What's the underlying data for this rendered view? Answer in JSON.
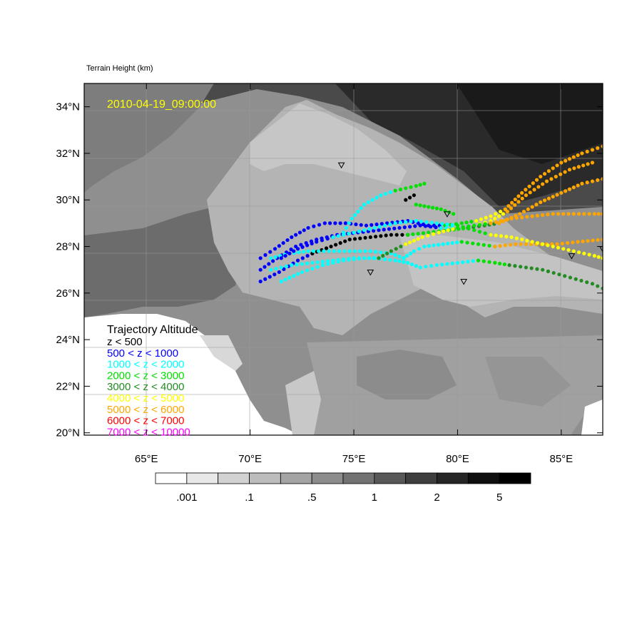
{
  "map_title": "Terrain Height   (km)",
  "timestamp": "2010-04-19_09:00:00",
  "timestamp_color": "#ffff00",
  "extent": {
    "lon": [
      62,
      87
    ],
    "lat": [
      19.9,
      35.0
    ]
  },
  "lat_ticks": [
    {
      "value": 20,
      "label": "20°N"
    },
    {
      "value": 22,
      "label": "22°N"
    },
    {
      "value": 24,
      "label": "24°N"
    },
    {
      "value": 26,
      "label": "26°N"
    },
    {
      "value": 28,
      "label": "28°N"
    },
    {
      "value": 30,
      "label": "30°N"
    },
    {
      "value": 32,
      "label": "32°N"
    },
    {
      "value": 34,
      "label": "34°N"
    }
  ],
  "lon_ticks": [
    {
      "value": 65,
      "label": "65°E"
    },
    {
      "value": 70,
      "label": "70°E"
    },
    {
      "value": 75,
      "label": "75°E"
    },
    {
      "value": 80,
      "label": "80°E"
    },
    {
      "value": 85,
      "label": "85°E"
    }
  ],
  "legend": {
    "title": "Trajectory Altitude",
    "entries": [
      {
        "label": "z < 500",
        "color": "#000000"
      },
      {
        "label": "500 < z < 1000",
        "color": "#0000ff"
      },
      {
        "label": "1000 < z < 2000",
        "color": "#00ffff"
      },
      {
        "label": "2000 < z < 3000",
        "color": "#00e000"
      },
      {
        "label": "3000 < z < 4000",
        "color": "#228b22"
      },
      {
        "label": "4000 < z < 5000",
        "color": "#ffff00"
      },
      {
        "label": "5000 < z < 6000",
        "color": "#ffa500"
      },
      {
        "label": "6000 < z < 7000",
        "color": "#ff0000"
      },
      {
        "label": "7000 < z < 10000",
        "color": "#ff00ff"
      }
    ]
  },
  "colorbar": {
    "colors": [
      "#ffffff",
      "#e8e8e8",
      "#d2d2d2",
      "#bcbcbc",
      "#a4a4a4",
      "#8c8c8c",
      "#727272",
      "#585858",
      "#3e3e3e",
      "#262626",
      "#0e0e0e",
      "#000000"
    ],
    "labels": [
      ".001",
      ".1",
      ".5",
      "1",
      "2",
      "5"
    ]
  },
  "stations": [
    {
      "lon": 74.4,
      "lat": 31.5
    },
    {
      "lon": 79.5,
      "lat": 29.4
    },
    {
      "lon": 75.8,
      "lat": 26.9
    },
    {
      "lon": 80.3,
      "lat": 26.5
    },
    {
      "lon": 85.5,
      "lat": 27.6
    },
    {
      "lon": 87.0,
      "lat": 27.9
    }
  ],
  "trajectories": [
    {
      "segments": [
        {
          "color": "#0000ff",
          "points": [
            [
              70.5,
              27.5
            ],
            [
              71.2,
              27.9
            ],
            [
              72.0,
              28.4
            ],
            [
              72.8,
              28.8
            ],
            [
              73.6,
              29.0
            ],
            [
              74.6,
              29.0
            ],
            [
              75.6,
              28.9
            ],
            [
              76.6,
              29.0
            ],
            [
              77.6,
              29.1
            ],
            [
              78.6,
              28.9
            ],
            [
              79.4,
              28.9
            ]
          ]
        },
        {
          "color": "#00e000",
          "points": [
            [
              79.4,
              28.9
            ],
            [
              80.2,
              29.0
            ],
            [
              80.9,
              29.1
            ]
          ]
        },
        {
          "color": "#ffff00",
          "points": [
            [
              80.9,
              29.1
            ],
            [
              81.6,
              29.3
            ],
            [
              82.3,
              29.6
            ]
          ]
        },
        {
          "color": "#ffa500",
          "points": [
            [
              82.3,
              29.6
            ],
            [
              83.1,
              30.3
            ],
            [
              84.0,
              31.0
            ],
            [
              85.0,
              31.6
            ],
            [
              86.0,
              32.0
            ],
            [
              87.0,
              32.3
            ]
          ]
        }
      ]
    },
    {
      "segments": [
        {
          "color": "#0000ff",
          "points": [
            [
              70.5,
              27.0
            ],
            [
              71.3,
              27.5
            ],
            [
              72.2,
              28.0
            ],
            [
              73.2,
              28.3
            ],
            [
              74.2,
              28.5
            ],
            [
              75.2,
              28.6
            ],
            [
              76.2,
              28.7
            ],
            [
              77.2,
              28.8
            ],
            [
              78.2,
              28.9
            ],
            [
              79.2,
              28.8
            ]
          ]
        },
        {
          "color": "#00ffff",
          "points": [
            [
              79.2,
              28.8
            ],
            [
              80.0,
              28.8
            ],
            [
              80.8,
              28.9
            ]
          ]
        },
        {
          "color": "#ffff00",
          "points": [
            [
              80.8,
              28.9
            ],
            [
              81.6,
              29.1
            ],
            [
              82.4,
              29.5
            ]
          ]
        },
        {
          "color": "#ffa500",
          "points": [
            [
              82.4,
              29.5
            ],
            [
              83.3,
              30.2
            ],
            [
              84.3,
              30.8
            ],
            [
              85.4,
              31.3
            ],
            [
              86.5,
              31.6
            ]
          ]
        }
      ]
    },
    {
      "segments": [
        {
          "color": "#0000ff",
          "points": [
            [
              70.5,
              26.5
            ],
            [
              71.4,
              26.9
            ],
            [
              72.3,
              27.4
            ],
            [
              73.0,
              27.7
            ]
          ]
        },
        {
          "color": "#000000",
          "points": [
            [
              73.0,
              27.7
            ],
            [
              73.9,
              28.0
            ],
            [
              74.8,
              28.3
            ],
            [
              75.8,
              28.4
            ],
            [
              76.8,
              28.5
            ],
            [
              77.6,
              28.5
            ]
          ]
        },
        {
          "color": "#00e000",
          "points": [
            [
              77.6,
              28.5
            ],
            [
              78.6,
              28.6
            ],
            [
              79.6,
              28.7
            ],
            [
              80.5,
              28.8
            ]
          ]
        },
        {
          "color": "#228b22",
          "points": [
            [
              80.5,
              28.8
            ],
            [
              81.3,
              28.9
            ],
            [
              82.0,
              29.0
            ]
          ]
        },
        {
          "color": "#ffa500",
          "points": [
            [
              82.0,
              29.0
            ],
            [
              83.0,
              29.4
            ],
            [
              84.0,
              29.9
            ],
            [
              85.0,
              30.3
            ],
            [
              86.0,
              30.7
            ],
            [
              87.0,
              30.9
            ]
          ]
        }
      ]
    },
    {
      "segments": [
        {
          "color": "#00ffff",
          "points": [
            [
              71.0,
              27.5
            ],
            [
              71.9,
              27.7
            ],
            [
              72.8,
              27.8
            ],
            [
              73.8,
              27.8
            ],
            [
              74.8,
              27.8
            ],
            [
              75.8,
              27.8
            ],
            [
              76.8,
              27.7
            ],
            [
              77.4,
              27.5
            ]
          ]
        },
        {
          "color": "#00ffff",
          "points": [
            [
              77.4,
              27.5
            ],
            [
              77.9,
              27.8
            ],
            [
              78.4,
              28.0
            ],
            [
              79.3,
              28.1
            ],
            [
              80.2,
              28.2
            ]
          ]
        },
        {
          "color": "#00e000",
          "points": [
            [
              80.2,
              28.2
            ],
            [
              81.0,
              28.1
            ],
            [
              81.8,
              28.0
            ]
          ]
        },
        {
          "color": "#ffa500",
          "points": [
            [
              81.8,
              28.0
            ],
            [
              82.8,
              28.1
            ],
            [
              83.8,
              28.1
            ],
            [
              84.8,
              28.1
            ],
            [
              85.8,
              28.2
            ],
            [
              87.0,
              28.3
            ]
          ]
        }
      ]
    },
    {
      "segments": [
        {
          "color": "#00ffff",
          "points": [
            [
              71.0,
              27.0
            ],
            [
              72.0,
              27.2
            ],
            [
              73.0,
              27.3
            ],
            [
              74.0,
              27.4
            ],
            [
              75.0,
              27.5
            ],
            [
              76.0,
              27.5
            ],
            [
              77.0,
              27.4
            ],
            [
              77.6,
              27.3
            ]
          ]
        },
        {
          "color": "#00ffff",
          "points": [
            [
              77.6,
              27.3
            ],
            [
              78.2,
              27.1
            ],
            [
              79.0,
              27.2
            ],
            [
              80.0,
              27.3
            ],
            [
              81.0,
              27.4
            ]
          ]
        },
        {
          "color": "#00e000",
          "points": [
            [
              81.0,
              27.4
            ],
            [
              81.8,
              27.3
            ],
            [
              82.5,
              27.2
            ]
          ]
        },
        {
          "color": "#228b22",
          "points": [
            [
              82.5,
              27.2
            ],
            [
              83.3,
              27.1
            ],
            [
              84.1,
              27.0
            ],
            [
              84.9,
              26.8
            ],
            [
              85.7,
              26.6
            ],
            [
              86.5,
              26.4
            ],
            [
              87.0,
              26.2
            ]
          ]
        }
      ]
    },
    {
      "segments": [
        {
          "color": "#0000ff",
          "points": [
            [
              71.5,
              27.5
            ],
            [
              72.3,
              27.9
            ],
            [
              73.2,
              28.2
            ],
            [
              74.0,
              28.4
            ]
          ]
        },
        {
          "color": "#00ffff",
          "points": [
            [
              74.0,
              28.4
            ],
            [
              75.0,
              28.6
            ],
            [
              76.0,
              28.8
            ],
            [
              77.0,
              29.0
            ],
            [
              78.0,
              29.1
            ],
            [
              79.0,
              29.0
            ],
            [
              80.0,
              28.9
            ]
          ]
        },
        {
          "color": "#00e000",
          "points": [
            [
              80.0,
              28.9
            ],
            [
              80.8,
              28.7
            ],
            [
              81.6,
              28.5
            ]
          ]
        },
        {
          "color": "#ffff00",
          "points": [
            [
              81.6,
              28.5
            ],
            [
              82.6,
              28.4
            ],
            [
              83.6,
              28.2
            ],
            [
              84.6,
              28.0
            ],
            [
              85.6,
              27.8
            ],
            [
              86.6,
              27.6
            ],
            [
              87.0,
              27.5
            ]
          ]
        }
      ]
    },
    {
      "segments": [
        {
          "color": "#00ffff",
          "points": [
            [
              71.5,
              26.5
            ],
            [
              72.5,
              26.9
            ],
            [
              73.5,
              27.2
            ],
            [
              74.5,
              27.4
            ],
            [
              75.5,
              27.5
            ],
            [
              76.2,
              27.5
            ]
          ]
        },
        {
          "color": "#228b22",
          "points": [
            [
              76.2,
              27.5
            ],
            [
              76.8,
              27.8
            ],
            [
              77.5,
              28.1
            ]
          ]
        },
        {
          "color": "#ffff00",
          "points": [
            [
              77.5,
              28.1
            ],
            [
              78.3,
              28.4
            ],
            [
              79.1,
              28.6
            ],
            [
              80.0,
              28.8
            ]
          ]
        },
        {
          "color": "#00e000",
          "points": [
            [
              80.0,
              28.8
            ],
            [
              80.8,
              28.9
            ],
            [
              81.6,
              29.0
            ]
          ]
        },
        {
          "color": "#ffa500",
          "points": [
            [
              81.6,
              29.0
            ],
            [
              82.6,
              29.2
            ],
            [
              83.6,
              29.3
            ],
            [
              84.6,
              29.4
            ],
            [
              85.6,
              29.4
            ],
            [
              86.6,
              29.4
            ],
            [
              87.0,
              29.4
            ]
          ]
        }
      ]
    },
    {
      "segments": [
        {
          "color": "#00ffff",
          "points": [
            [
              74.5,
              28.6
            ],
            [
              74.9,
              29.2
            ],
            [
              75.5,
              29.8
            ],
            [
              76.3,
              30.2
            ],
            [
              77.0,
              30.4
            ]
          ]
        },
        {
          "color": "#00e000",
          "points": [
            [
              77.0,
              30.4
            ],
            [
              77.5,
              30.5
            ],
            [
              78.0,
              30.6
            ],
            [
              78.4,
              30.7
            ]
          ]
        }
      ]
    },
    {
      "segments": [
        {
          "color": "#00e000",
          "points": [
            [
              78.0,
              29.8
            ],
            [
              78.6,
              29.7
            ],
            [
              79.2,
              29.6
            ],
            [
              79.8,
              29.4
            ]
          ]
        },
        {
          "color": "#000000",
          "points": [
            [
              77.5,
              30.0
            ],
            [
              77.7,
              30.1
            ],
            [
              77.9,
              30.2
            ]
          ]
        }
      ]
    }
  ]
}
